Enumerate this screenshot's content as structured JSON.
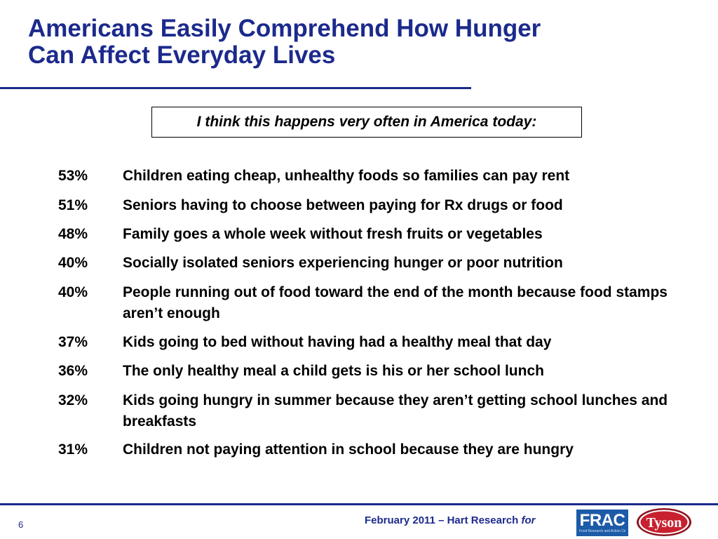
{
  "title": {
    "line1": "Americans Easily Comprehend How Hunger",
    "line2": "Can Affect Everyday Lives"
  },
  "question": "I think this happens very often in America today:",
  "items": [
    {
      "pct": "53%",
      "text": "Children eating cheap, unhealthy foods so families can pay rent"
    },
    {
      "pct": "51%",
      "text": "Seniors having to choose between paying for Rx drugs or food"
    },
    {
      "pct": "48%",
      "text": "Family goes a whole week without fresh fruits or vegetables"
    },
    {
      "pct": "40%",
      "text": "Socially isolated seniors experiencing hunger or poor nutrition"
    },
    {
      "pct": "40%",
      "text": "People running out of food toward the end of the month because food stamps aren’t enough"
    },
    {
      "pct": "37%",
      "text": "Kids going to bed without having had a healthy meal that day"
    },
    {
      "pct": "36%",
      "text": "The only healthy meal a child gets is his or her school lunch"
    },
    {
      "pct": "32%",
      "text": "Kids going hungry in summer because they aren’t getting school lunches and breakfasts"
    },
    {
      "pct": "31%",
      "text": "Children not paying attention in school because they are hungry"
    }
  ],
  "footer": {
    "page_number": "6",
    "credit": "February 2011 – Hart Research",
    "credit_for": "for",
    "frac_logo_text": "FRAC",
    "frac_tagline": "Food Research and Action Center",
    "tyson_logo_text": "Tyson"
  },
  "colors": {
    "title": "#1c2a8c",
    "frac_blue": "#1d5ba8",
    "tyson_red": "#c8202f"
  }
}
